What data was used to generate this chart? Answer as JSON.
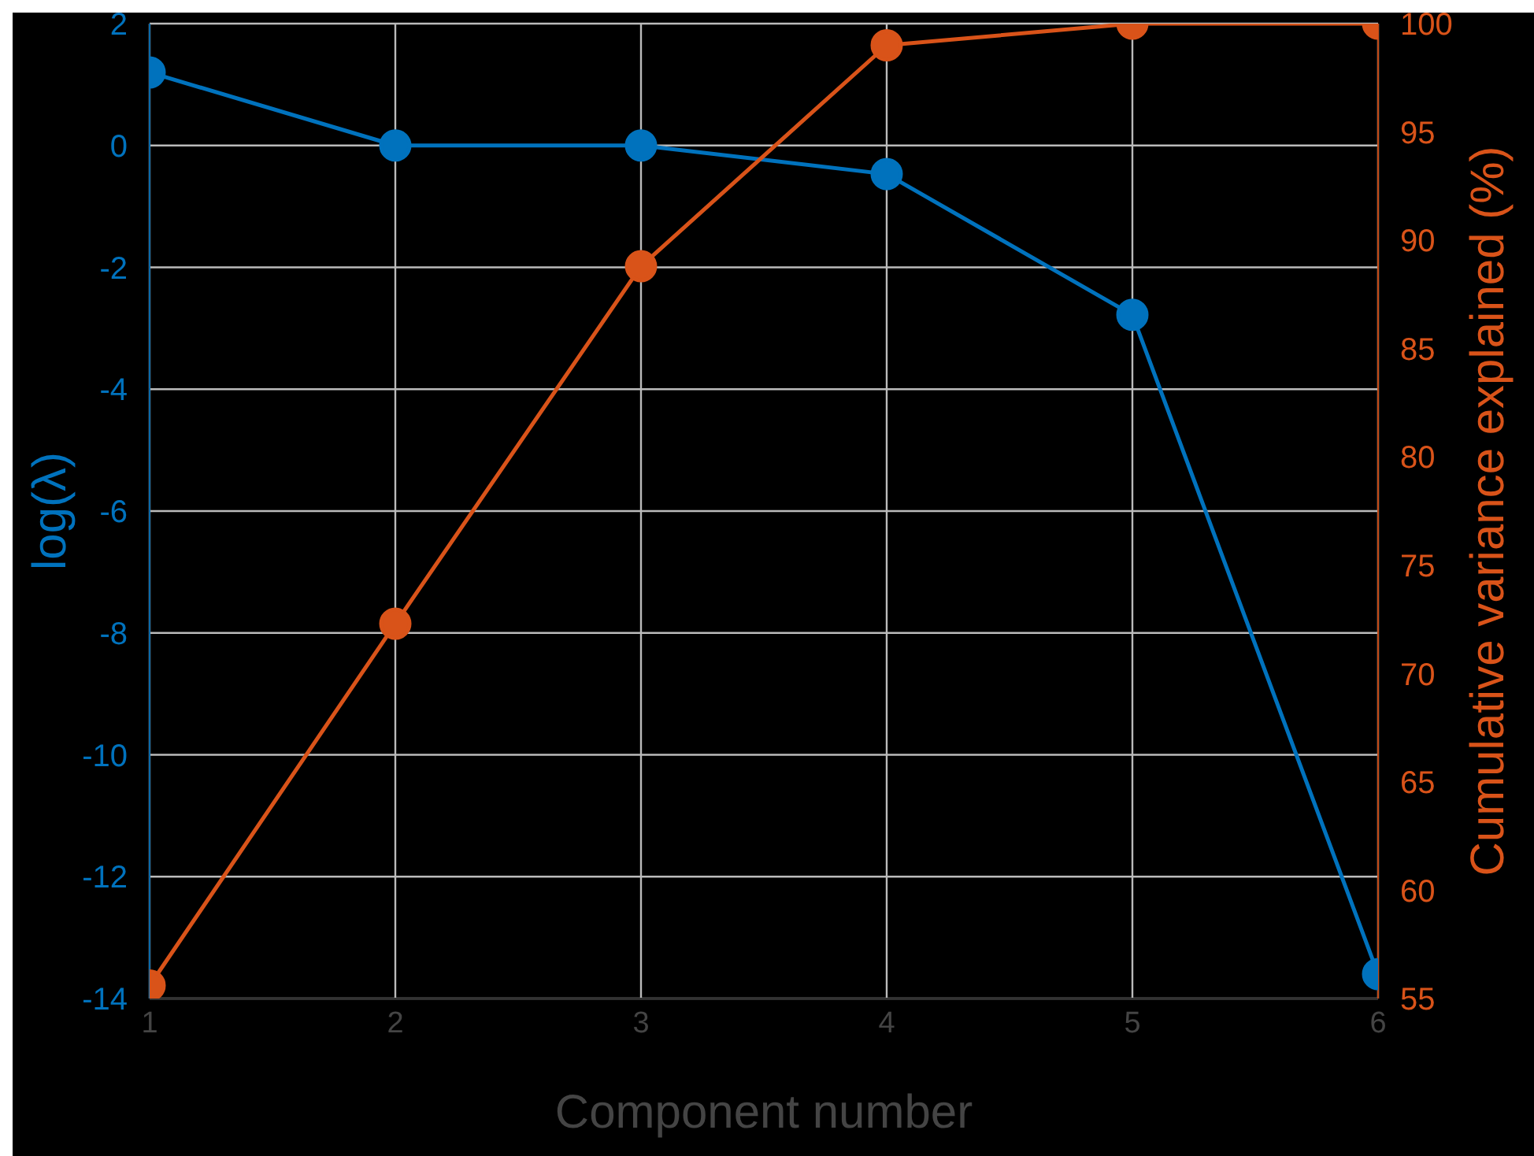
{
  "chart_data": {
    "type": "line",
    "xlabel": "Component number",
    "ylabel": "log(λ)",
    "y2label": "Cumulative variance explained (%)",
    "x": [
      1,
      2,
      3,
      4,
      5,
      6
    ],
    "xlim": [
      1,
      6
    ],
    "xticks": [
      1,
      2,
      3,
      4,
      5,
      6
    ],
    "ylim": [
      -14,
      2
    ],
    "yticks": [
      -14,
      -12,
      -10,
      -8,
      -6,
      -4,
      -2,
      0,
      2
    ],
    "y2lim": [
      55,
      100
    ],
    "y2ticks": [
      55,
      60,
      65,
      70,
      75,
      80,
      85,
      90,
      95,
      100
    ],
    "grid": true,
    "marker": "circle",
    "line_style": "solid",
    "series": [
      {
        "color": "#0072bd",
        "values": [
          1.2,
          0.0,
          0.0,
          -0.47,
          -2.78,
          -13.6
        ]
      },
      {
        "color": "#d95319",
        "axis": "y2",
        "values": [
          55.6,
          72.3,
          88.8,
          99.0,
          100,
          100
        ]
      }
    ]
  }
}
